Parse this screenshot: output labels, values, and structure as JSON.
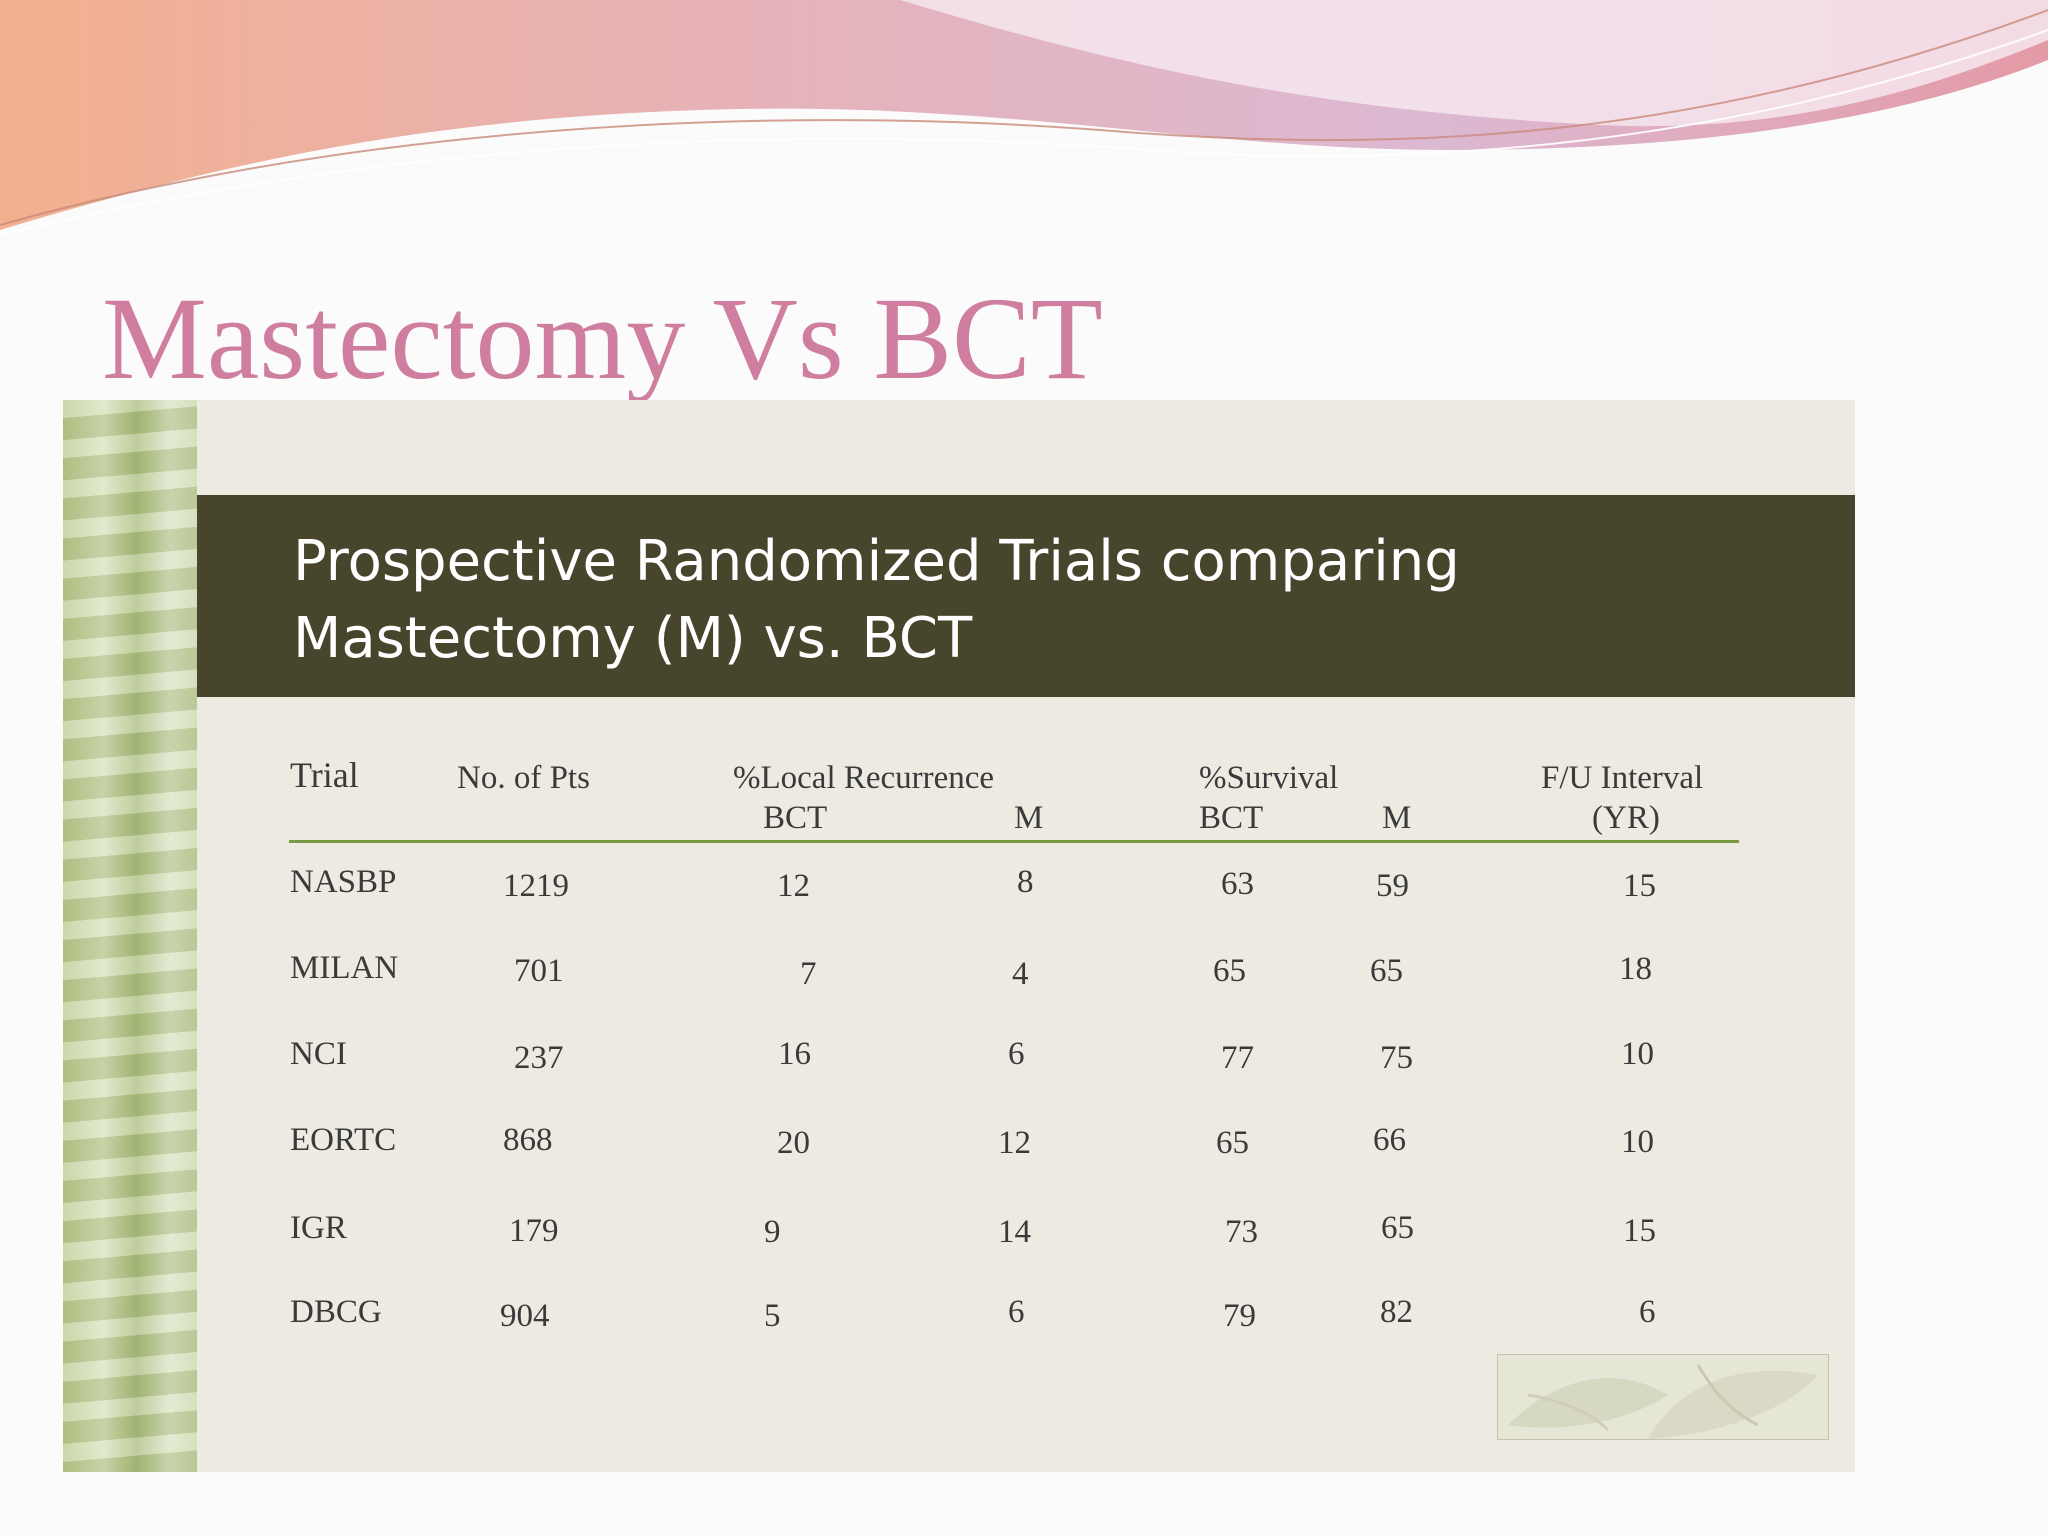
{
  "slide": {
    "title": "Mastectomy Vs BCT",
    "colors": {
      "title": "#d07ea0",
      "band": "#48452d",
      "rule": "#7a9a45",
      "panel": "#eceae1"
    }
  },
  "panel": {
    "heading_line1": "Prospective Randomized Trials comparing",
    "heading_line2": "Mastectomy (M) vs. BCT"
  },
  "table": {
    "headers": {
      "trial": "Trial",
      "pts": "No. of Pts",
      "local": "%Local Recurrence",
      "survival": "%Survival",
      "fu": "F/U Interval",
      "bct1": "BCT",
      "m1": "M",
      "bct2": "BCT",
      "m2": "M",
      "yr": "(YR)"
    },
    "rows": [
      {
        "trial": "NASBP",
        "pts": "1219",
        "lr_bct": "12",
        "lr_m": "8",
        "s_bct": "63",
        "s_m": "59",
        "fu": "15"
      },
      {
        "trial": "MILAN",
        "pts": "701",
        "lr_bct": "7",
        "lr_m": "4",
        "s_bct": "65",
        "s_m": "65",
        "fu": "18"
      },
      {
        "trial": "NCI",
        "pts": "237",
        "lr_bct": "16",
        "lr_m": "6",
        "s_bct": "77",
        "s_m": "75",
        "fu": "10"
      },
      {
        "trial": "EORTC",
        "pts": "868",
        "lr_bct": "20",
        "lr_m": "12",
        "s_bct": "65",
        "s_m": "66",
        "fu": "10"
      },
      {
        "trial": "IGR",
        "pts": "179",
        "lr_bct": "9",
        "lr_m": "14",
        "s_bct": "73",
        "s_m": "65",
        "fu": "15"
      },
      {
        "trial": "DBCG",
        "pts": "904",
        "lr_bct": "5",
        "lr_m": "6",
        "s_bct": "79",
        "s_m": "82",
        "fu": "6"
      }
    ]
  }
}
